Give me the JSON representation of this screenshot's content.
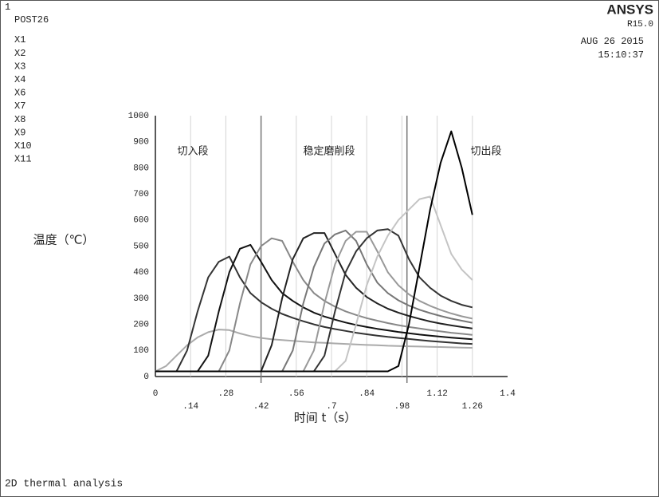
{
  "chart_data": {
    "type": "line",
    "window": "1",
    "title": "POST26",
    "brand": "ANSYS",
    "version": "R15.0",
    "date": "AUG 26 2015",
    "time": "15:10:37",
    "ylabel": "温度（℃）",
    "xlabel": "时间 t（s）",
    "footer": "2D thermal analysis",
    "annotations": [
      "切入段",
      "稳定磨削段",
      "切出段"
    ],
    "dividers": [
      0.42,
      1.0
    ],
    "grid": true,
    "xlim": [
      0,
      1.4
    ],
    "ylim": [
      0,
      1000
    ],
    "xticks": [
      0,
      {
        "value": 0.14,
        "label": ".14"
      },
      {
        "value": 0.28,
        "label": ".28"
      },
      {
        "value": 0.42,
        "label": ".42"
      },
      {
        "value": 0.56,
        "label": ".56"
      },
      {
        "value": 0.7,
        "label": ".7"
      },
      {
        "value": 0.84,
        "label": ".84"
      },
      {
        "value": 0.98,
        "label": ".98"
      },
      1.12,
      1.26,
      1.4
    ],
    "yticks": [
      0,
      100,
      200,
      300,
      400,
      500,
      600,
      700,
      800,
      900,
      1000
    ],
    "x": [
      0,
      0.042,
      0.084,
      0.126,
      0.168,
      0.21,
      0.252,
      0.294,
      0.336,
      0.378,
      0.42,
      0.462,
      0.504,
      0.546,
      0.588,
      0.63,
      0.672,
      0.714,
      0.756,
      0.798,
      0.84,
      0.882,
      0.924,
      0.966,
      1.008,
      1.05,
      1.092,
      1.134,
      1.176,
      1.218,
      1.26
    ],
    "series": [
      {
        "name": "X1",
        "color": "#aaaaaa",
        "values": [
          20,
          40,
          80,
          120,
          150,
          170,
          180,
          178,
          165,
          155,
          148,
          143,
          140,
          137,
          134,
          131,
          129,
          127,
          125,
          123,
          121,
          120,
          118,
          117,
          116,
          115,
          114,
          113,
          112,
          111,
          110
        ]
      },
      {
        "name": "X2",
        "color": "#333333",
        "values": [
          20,
          20,
          20,
          100,
          250,
          380,
          440,
          460,
          380,
          320,
          285,
          260,
          240,
          225,
          212,
          200,
          190,
          182,
          175,
          168,
          162,
          157,
          152,
          148,
          144,
          140,
          136,
          133,
          130,
          127,
          125
        ]
      },
      {
        "name": "X3",
        "color": "#111111",
        "values": [
          20,
          20,
          20,
          20,
          20,
          80,
          250,
          400,
          490,
          505,
          440,
          370,
          320,
          290,
          265,
          245,
          230,
          218,
          207,
          198,
          190,
          183,
          177,
          171,
          166,
          161,
          157,
          153,
          149,
          146,
          143
        ]
      },
      {
        "name": "X4",
        "color": "#888888",
        "values": [
          20,
          20,
          20,
          20,
          20,
          20,
          20,
          100,
          280,
          430,
          500,
          530,
          520,
          440,
          370,
          320,
          290,
          268,
          250,
          236,
          224,
          214,
          205,
          197,
          190,
          184,
          178,
          173,
          168,
          164,
          160
        ]
      },
      {
        "name": "X6",
        "color": "#222222",
        "values": [
          20,
          20,
          20,
          20,
          20,
          20,
          20,
          20,
          20,
          20,
          20,
          120,
          300,
          450,
          530,
          550,
          550,
          470,
          390,
          340,
          305,
          280,
          260,
          245,
          232,
          221,
          211,
          203,
          196,
          190,
          184
        ]
      },
      {
        "name": "X7",
        "color": "#777777",
        "values": [
          20,
          20,
          20,
          20,
          20,
          20,
          20,
          20,
          20,
          20,
          20,
          20,
          20,
          100,
          280,
          420,
          510,
          545,
          560,
          520,
          430,
          360,
          320,
          292,
          272,
          256,
          243,
          232,
          222,
          214,
          206
        ]
      },
      {
        "name": "X8",
        "color": "#999999",
        "values": [
          20,
          20,
          20,
          20,
          20,
          20,
          20,
          20,
          20,
          20,
          20,
          20,
          20,
          20,
          20,
          100,
          280,
          430,
          520,
          555,
          555,
          480,
          400,
          350,
          315,
          290,
          271,
          255,
          242,
          231,
          222
        ]
      },
      {
        "name": "X9",
        "color": "#333333",
        "values": [
          20,
          20,
          20,
          20,
          20,
          20,
          20,
          20,
          20,
          20,
          20,
          20,
          20,
          20,
          20,
          20,
          80,
          250,
          400,
          480,
          530,
          560,
          565,
          540,
          450,
          380,
          340,
          310,
          290,
          275,
          265
        ]
      },
      {
        "name": "X10",
        "color": "#c4c4c4",
        "values": [
          20,
          20,
          20,
          20,
          20,
          20,
          20,
          20,
          20,
          20,
          20,
          20,
          20,
          20,
          20,
          20,
          20,
          20,
          60,
          200,
          350,
          460,
          540,
          600,
          640,
          680,
          690,
          580,
          470,
          410,
          370
        ]
      },
      {
        "name": "X11",
        "color": "#000000",
        "values": [
          20,
          20,
          20,
          20,
          20,
          20,
          20,
          20,
          20,
          20,
          20,
          20,
          20,
          20,
          20,
          20,
          20,
          20,
          20,
          20,
          20,
          20,
          20,
          40,
          200,
          420,
          640,
          820,
          940,
          800,
          620
        ]
      }
    ]
  }
}
